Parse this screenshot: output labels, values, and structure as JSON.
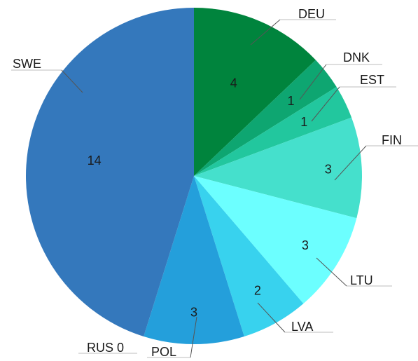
{
  "chart_data": {
    "type": "pie",
    "title": "",
    "categories": [
      "DEU",
      "DNK",
      "EST",
      "FIN",
      "LTU",
      "LVA",
      "POL",
      "RUS",
      "SWE"
    ],
    "values": [
      4,
      1,
      1,
      3,
      3,
      2,
      3,
      0,
      14
    ],
    "value_labels": [
      "4",
      "1",
      "1",
      "3",
      "3",
      "2",
      "3",
      "0",
      "14"
    ],
    "colors": [
      "#00843d",
      "#0ea671",
      "#22c79e",
      "#45e0cc",
      "#6cffff",
      "#38d2ee",
      "#249fdb",
      "#2d71b8",
      "#3478bc"
    ],
    "start_angle": "12 o'clock",
    "direction": "clockwise",
    "legend": "none",
    "label_style": "outside category labels with leader lines, values inside slices"
  }
}
